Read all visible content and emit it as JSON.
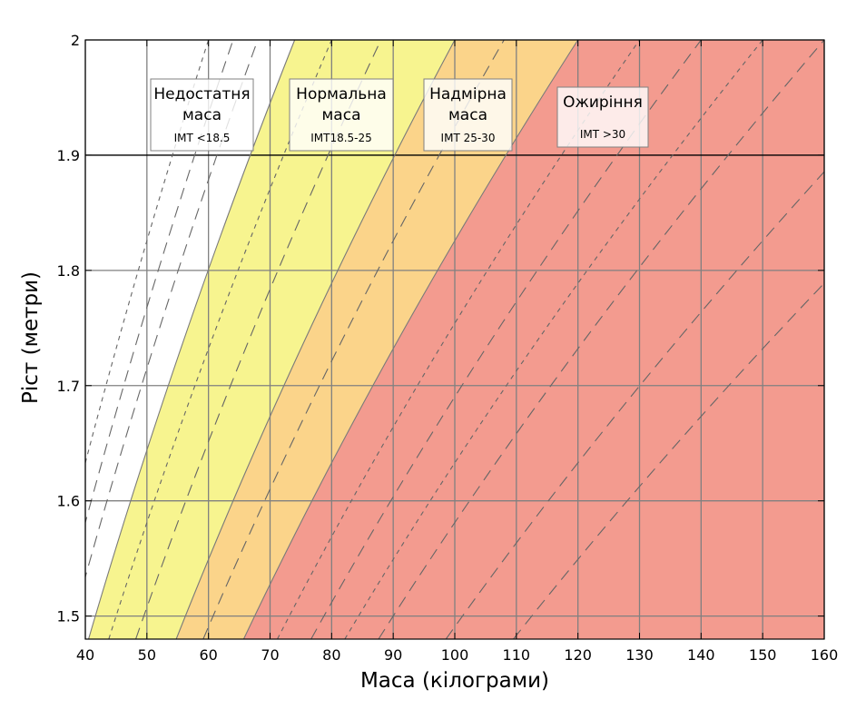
{
  "chart_data": {
    "type": "area",
    "xlabel": "Маса (кілограми)",
    "ylabel": "Ріст (метри)",
    "xlim": [
      40,
      160
    ],
    "ylim": [
      1.48,
      2.0
    ],
    "x_ticks": [
      40,
      50,
      60,
      70,
      80,
      90,
      100,
      110,
      120,
      130,
      140,
      150,
      160
    ],
    "y_ticks": [
      1.5,
      1.6,
      1.7,
      1.8,
      1.9,
      2.0
    ],
    "x_tick_labels": [
      "40",
      "50",
      "60",
      "70",
      "80",
      "90",
      "100",
      "110",
      "120",
      "130",
      "140",
      "150",
      "160"
    ],
    "y_tick_labels": [
      "1.5",
      "1.6",
      "1.7",
      "1.8",
      "1.9",
      "2"
    ],
    "grid": true,
    "bands": [
      {
        "name": "Недостатня маса",
        "bmi_min": 0,
        "bmi_max": 18.5,
        "color": "#ffffff"
      },
      {
        "name": "Нормальна маса",
        "bmi_min": 18.5,
        "bmi_max": 25,
        "color": "#f7f48f"
      },
      {
        "name": "Надмірна маса",
        "bmi_min": 25,
        "bmi_max": 30,
        "color": "#fbd48a"
      },
      {
        "name": "Ожиріння",
        "bmi_min": 30,
        "bmi_max": 100,
        "color": "#f39b8f"
      }
    ],
    "band_boundaries_bmi": [
      18.5,
      25,
      30
    ],
    "dashed_bmi_lines": [
      16,
      17,
      22,
      27,
      35,
      40,
      45,
      50
    ],
    "dotted_bmi_lines": [
      15,
      20,
      32.5,
      37.5
    ],
    "annotations": [
      {
        "title": "Недостатня\nмаса",
        "subtitle": "IMT <18.5"
      },
      {
        "title": "Нормальна\nмаса",
        "subtitle": "IMT18.5-25"
      },
      {
        "title": "Надмірна\nмаса",
        "subtitle": "IMT 25-30"
      },
      {
        "title": "Ожиріння",
        "subtitle": "IMT >30"
      }
    ]
  }
}
